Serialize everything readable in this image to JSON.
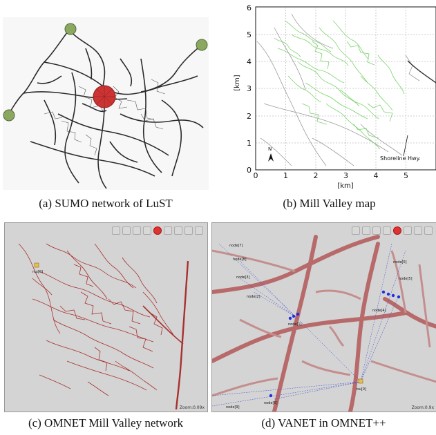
{
  "figure": {
    "captions": {
      "a": "(a) SUMO network of LuST",
      "b": "(b) Mill Valley map",
      "c": "(c) OMNET Mill Valley network",
      "d": "(d) VANET in OMNET++"
    }
  },
  "panel_b": {
    "ylabel": "[km]",
    "xlabel": "[km]",
    "x_ticks": [
      "0",
      "1",
      "2",
      "3",
      "4",
      "5"
    ],
    "y_ticks": [
      "0",
      "1",
      "2",
      "3",
      "4",
      "5",
      "6"
    ],
    "north_label": "N",
    "annotation": "Shoreline Hwy."
  },
  "panel_c": {
    "node_label": "rsu[0]",
    "zoom": "Zoom:0.09x"
  },
  "panel_d": {
    "zoom": "Zoom:0.9x",
    "node_labels": [
      "node[7]",
      "node[8]",
      "node[3]",
      "node[2]",
      "node[1]",
      "node[0]",
      "node[5]",
      "node[4]",
      "rsu[0]",
      "node[6]",
      "node[9]"
    ]
  },
  "colors": {
    "sumo_roads": "#2a2a2a",
    "sumo_circle": "#cc3333",
    "sumo_node": "#8aa860",
    "mv_roads_green": "#7bd36b",
    "mv_roads_gray": "#9a9a9a",
    "omnet_roads": "#a8302e",
    "omnet_bg": "#d4d4d4",
    "vanet_link": "#3a4bd8"
  }
}
